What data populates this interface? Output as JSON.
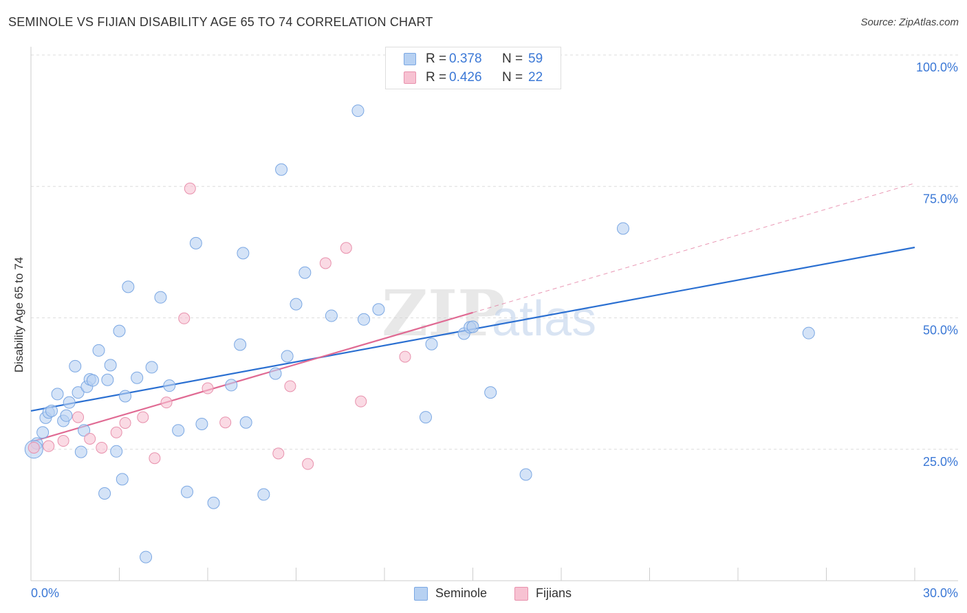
{
  "title": "SEMINOLE VS FIJIAN DISABILITY AGE 65 TO 74 CORRELATION CHART",
  "source": "Source: ZipAtlas.com",
  "watermark": {
    "zip": "ZIP",
    "atlas": "atlas"
  },
  "colors": {
    "seminole_fill": "#b7d1f2",
    "seminole_stroke": "#7aa7e3",
    "seminole_line": "#2a6fd1",
    "fijians_fill": "#f7c2d2",
    "fijians_stroke": "#e890ac",
    "fijians_line": "#e06a93",
    "axis_label": "#3b78d6",
    "grid": "#dcdcdc"
  },
  "legend": {
    "rows": [
      {
        "series": "Seminole",
        "r_label": "R =",
        "r_value": "0.378",
        "n_label": "N =",
        "n_value": "59"
      },
      {
        "series": "Fijians",
        "r_label": "R =",
        "r_value": "0.426",
        "n_label": "N =",
        "n_value": "22"
      }
    ]
  },
  "bottom_legend": {
    "seminole": "Seminole",
    "fijians": "Fijians"
  },
  "chart_data": {
    "type": "scatter",
    "title": "SEMINOLE VS FIJIAN DISABILITY AGE 65 TO 74 CORRELATION CHART",
    "xlabel": "",
    "ylabel": "Disability Age 65 to 74",
    "xlim": [
      0,
      30
    ],
    "ylim": [
      0,
      100
    ],
    "x_tick_labels": [
      {
        "value": 0,
        "label": "0.0%"
      },
      {
        "value": 30,
        "label": "30.0%"
      }
    ],
    "y_tick_labels": [
      {
        "value": 25,
        "label": "25.0%"
      },
      {
        "value": 50,
        "label": "50.0%"
      },
      {
        "value": 75,
        "label": "75.0%"
      },
      {
        "value": 100,
        "label": "100.0%"
      }
    ],
    "grid": true,
    "series": [
      {
        "name": "Seminole",
        "r": 0.378,
        "n": 59,
        "trend": {
          "x": [
            0,
            30
          ],
          "y": [
            32.3,
            63.4
          ]
        },
        "points": [
          [
            0.2,
            26.1
          ],
          [
            0.4,
            28.2
          ],
          [
            0.5,
            31.0
          ],
          [
            0.6,
            32.0
          ],
          [
            0.7,
            32.3
          ],
          [
            0.9,
            35.5
          ],
          [
            1.1,
            30.4
          ],
          [
            1.2,
            31.4
          ],
          [
            1.3,
            33.9
          ],
          [
            1.5,
            40.8
          ],
          [
            1.6,
            35.8
          ],
          [
            1.7,
            24.5
          ],
          [
            1.8,
            28.6
          ],
          [
            1.9,
            36.9
          ],
          [
            2.0,
            38.3
          ],
          [
            2.1,
            38.1
          ],
          [
            2.3,
            43.8
          ],
          [
            2.5,
            16.6
          ],
          [
            2.6,
            38.2
          ],
          [
            2.7,
            41.0
          ],
          [
            2.9,
            24.6
          ],
          [
            3.0,
            47.5
          ],
          [
            3.1,
            19.3
          ],
          [
            3.2,
            35.1
          ],
          [
            3.3,
            55.9
          ],
          [
            3.6,
            38.6
          ],
          [
            3.9,
            4.5
          ],
          [
            4.1,
            40.6
          ],
          [
            4.4,
            53.9
          ],
          [
            4.7,
            37.1
          ],
          [
            5.0,
            28.6
          ],
          [
            5.3,
            16.9
          ],
          [
            5.6,
            64.2
          ],
          [
            5.8,
            29.8
          ],
          [
            6.2,
            14.8
          ],
          [
            6.8,
            37.2
          ],
          [
            7.1,
            44.9
          ],
          [
            7.2,
            62.3
          ],
          [
            7.3,
            30.1
          ],
          [
            7.9,
            16.4
          ],
          [
            8.3,
            39.4
          ],
          [
            8.5,
            78.2
          ],
          [
            8.7,
            42.7
          ],
          [
            9.0,
            52.6
          ],
          [
            9.3,
            58.6
          ],
          [
            10.2,
            50.4
          ],
          [
            11.1,
            89.4
          ],
          [
            11.3,
            49.7
          ],
          [
            11.8,
            51.6
          ],
          [
            13.4,
            31.1
          ],
          [
            13.6,
            45.0
          ],
          [
            14.7,
            47.0
          ],
          [
            14.9,
            48.2
          ],
          [
            15.0,
            48.3
          ],
          [
            15.6,
            35.8
          ],
          [
            16.8,
            20.2
          ],
          [
            20.1,
            67.0
          ],
          [
            26.4,
            47.1
          ],
          [
            0.1,
            25.0
          ]
        ]
      },
      {
        "name": "Fijians",
        "r": 0.426,
        "n": 22,
        "trend": {
          "x": [
            0,
            15.0
          ],
          "y": [
            26.4,
            51.0
          ]
        },
        "trend_extension": {
          "x": [
            15.0,
            30
          ],
          "y": [
            51.0,
            75.6
          ]
        },
        "points": [
          [
            0.1,
            25.3
          ],
          [
            0.6,
            25.6
          ],
          [
            1.1,
            26.6
          ],
          [
            1.6,
            31.1
          ],
          [
            2.0,
            27.0
          ],
          [
            2.4,
            25.3
          ],
          [
            2.9,
            28.2
          ],
          [
            3.2,
            30.0
          ],
          [
            3.8,
            31.1
          ],
          [
            4.2,
            23.3
          ],
          [
            4.6,
            33.9
          ],
          [
            5.2,
            49.9
          ],
          [
            5.4,
            74.6
          ],
          [
            6.0,
            36.6
          ],
          [
            6.6,
            30.1
          ],
          [
            8.4,
            24.2
          ],
          [
            8.8,
            37.0
          ],
          [
            9.4,
            22.2
          ],
          [
            10.0,
            60.4
          ],
          [
            10.7,
            63.3
          ],
          [
            11.2,
            34.1
          ],
          [
            12.7,
            42.6
          ]
        ]
      }
    ]
  }
}
